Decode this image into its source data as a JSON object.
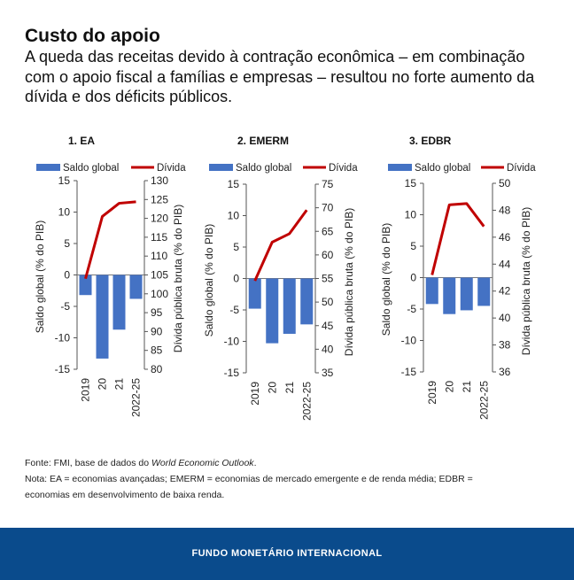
{
  "header": {
    "title": "Custo do apoio",
    "subtitle": "A queda das receitas devido à contração econômica – em combinação com o apoio fiscal a famílias e empresas – resultou no forte aumento da dívida e dos déficits públicos."
  },
  "notes": {
    "source_prefix": "Fonte: FMI, base de dados do ",
    "source_italic": "World Economic Outlook",
    "source_suffix": ".",
    "note_line1": "Nota: EA = economias avançadas; EMERM = economias de mercado emergente e de renda média; EDBR =",
    "note_line2": "economias em desenvolvimento de baixa renda."
  },
  "footer": {
    "label": "FUNDO MONETÁRIO INTERNACIONAL"
  },
  "colors": {
    "bar": "#4472c4",
    "line": "#c00000",
    "footer": "#0a4b8c"
  },
  "chart_data": [
    {
      "type": "bar",
      "title": "1. EA",
      "categories": [
        "2019",
        "20",
        "21",
        "2022-25"
      ],
      "series": [
        {
          "name": "Saldo global",
          "kind": "bar",
          "axis": "left",
          "values": [
            -3.2,
            -13.3,
            -8.7,
            -3.8
          ]
        },
        {
          "name": "Dívida",
          "kind": "line",
          "axis": "right",
          "values": [
            104,
            120.5,
            124,
            124.4
          ]
        }
      ],
      "ylabel": "Saldo global (% do PIB)",
      "ylim": [
        -15,
        15
      ],
      "yticks": [
        -15,
        -10,
        -5,
        0,
        5,
        10,
        15
      ],
      "y2label": "Dívida pública bruta (% do PIB)",
      "y2lim": [
        80,
        130
      ],
      "y2ticks": [
        80,
        85,
        90,
        95,
        100,
        105,
        110,
        115,
        120,
        125,
        130
      ],
      "legend": "top"
    },
    {
      "type": "bar",
      "title": "2. EMERM",
      "categories": [
        "2019",
        "20",
        "21",
        "2022-25"
      ],
      "series": [
        {
          "name": "Saldo global",
          "kind": "bar",
          "axis": "left",
          "values": [
            -4.8,
            -10.3,
            -8.8,
            -7.3
          ]
        },
        {
          "name": "Dívida",
          "kind": "line",
          "axis": "right",
          "values": [
            54.5,
            62.7,
            64.5,
            69.5
          ]
        }
      ],
      "ylabel": "Saldo global (% do PIB)",
      "ylim": [
        -15,
        15
      ],
      "yticks": [
        -15,
        -10,
        -5,
        0,
        5,
        10,
        15
      ],
      "y2label": "Dívida pública bruta (% do PIB)",
      "y2lim": [
        35,
        75
      ],
      "y2ticks": [
        35,
        40,
        45,
        50,
        55,
        60,
        65,
        70,
        75
      ],
      "legend": "top"
    },
    {
      "type": "bar",
      "title": "3. EDBR",
      "categories": [
        "2019",
        "20",
        "21",
        "2022-25"
      ],
      "series": [
        {
          "name": "Saldo global",
          "kind": "bar",
          "axis": "left",
          "values": [
            -4.2,
            -5.8,
            -5.2,
            -4.5
          ]
        },
        {
          "name": "Dívida",
          "kind": "line",
          "axis": "right",
          "values": [
            43.2,
            48.4,
            48.5,
            46.8
          ]
        }
      ],
      "ylabel": "Saldo global (% do PIB)",
      "ylim": [
        -15,
        15
      ],
      "yticks": [
        -15,
        -10,
        -5,
        0,
        5,
        10,
        15
      ],
      "y2label": "Dívida pública bruta (% do PIB)",
      "y2lim": [
        36,
        50
      ],
      "y2ticks": [
        36,
        38,
        40,
        42,
        44,
        46,
        48,
        50
      ],
      "legend": "top"
    }
  ]
}
